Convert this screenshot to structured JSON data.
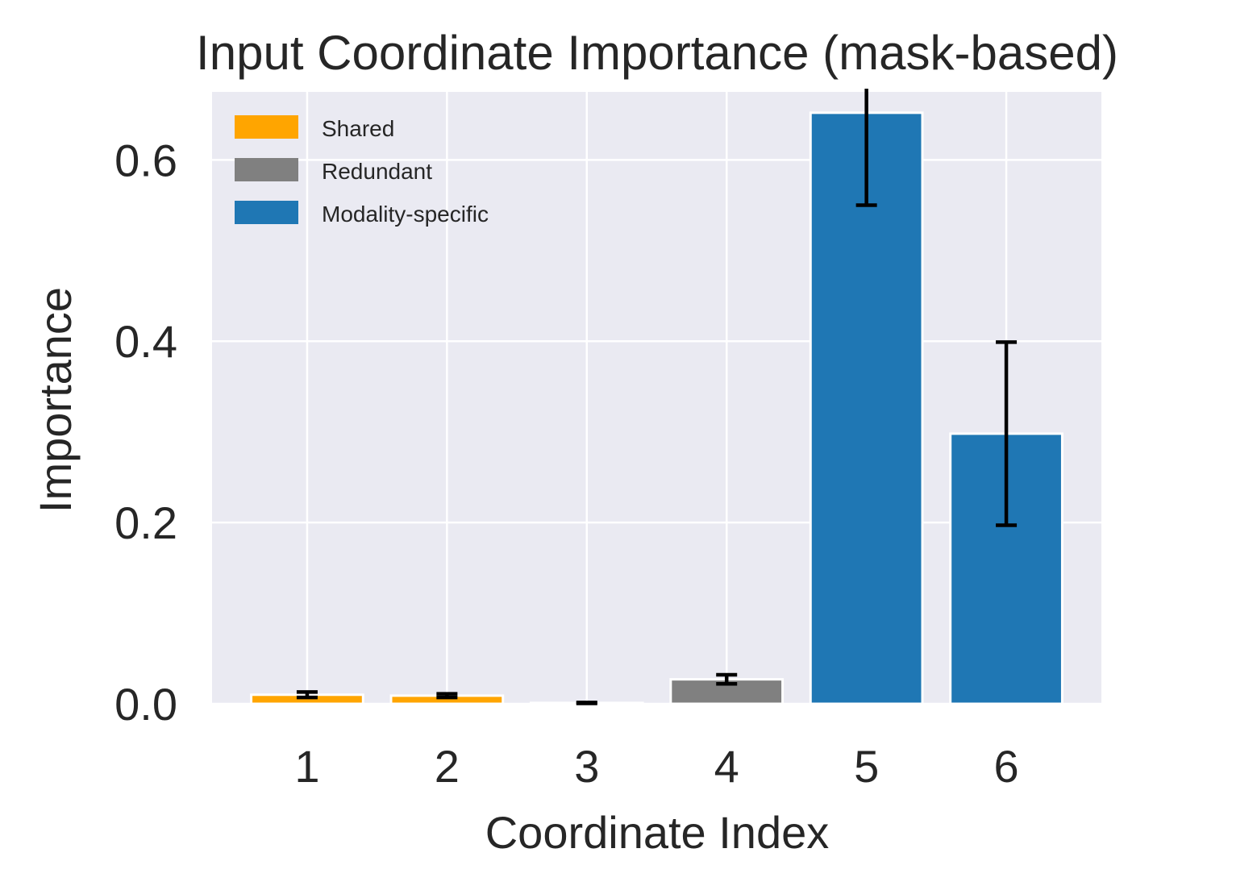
{
  "chart_data": {
    "type": "bar",
    "title": "Input Coordinate Importance (mask-based)",
    "xlabel": "Coordinate Index",
    "ylabel": "Importance",
    "categories": [
      "1",
      "2",
      "3",
      "4",
      "5",
      "6"
    ],
    "values": [
      0.01,
      0.009,
      0.001,
      0.027,
      0.652,
      0.298
    ],
    "errors": [
      0.003,
      0.002,
      0.0005,
      0.005,
      0.102,
      0.101
    ],
    "groups": [
      "Shared",
      "Shared",
      "Shared",
      "Redundant",
      "Modality-specific",
      "Modality-specific"
    ],
    "legend": [
      {
        "name": "Shared",
        "color": "#FFA500"
      },
      {
        "name": "Redundant",
        "color": "#808080"
      },
      {
        "name": "Modality-specific",
        "color": "#1F77B4"
      }
    ],
    "legend_position": "top-left",
    "ylim": [
      0,
      0.675
    ],
    "yticks": [
      0.0,
      0.2,
      0.4,
      0.6
    ],
    "ytick_labels": [
      "0.0",
      "0.2",
      "0.4",
      "0.6"
    ],
    "grid": true,
    "colors": {
      "plot_background": "#EAEAF2",
      "grid": "#FFFFFF",
      "error_bar": "#000000",
      "text": "#262626"
    }
  }
}
